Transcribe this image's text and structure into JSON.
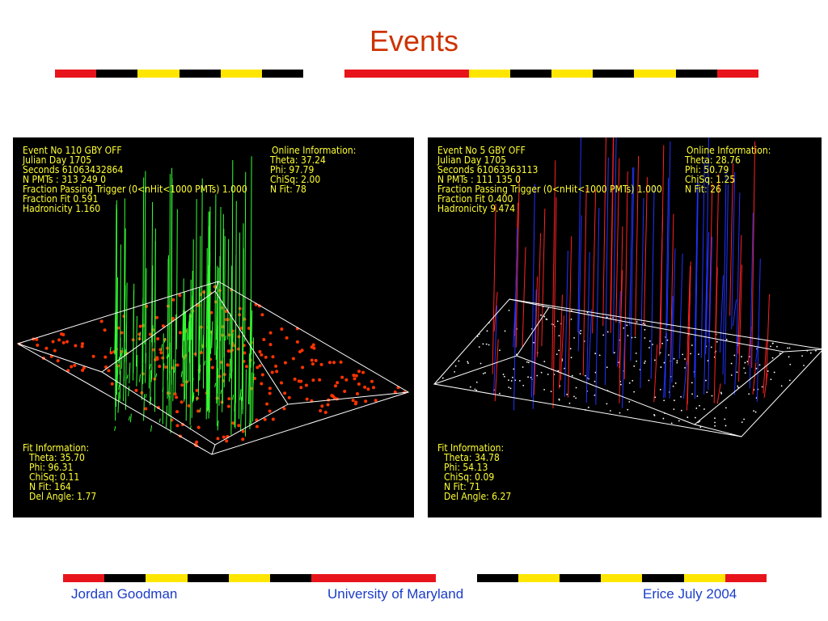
{
  "header": {
    "title": "Events"
  },
  "panels": [
    {
      "info": [
        "Event No 110 GBY OFF",
        "Julian Day 1705",
        "Seconds 61063432864",
        "N PMTs : 313 249 0",
        "Fraction Passing Trigger (0<nHit<1000 PMTs) 1.000",
        "Fraction Fit 0.591",
        "Hadronicity 1.160"
      ],
      "online": [
        "Online Information:",
        "Theta: 37.24",
        "Phi: 97.79",
        "ChiSq: 2.00",
        "N Fit: 78"
      ],
      "fit": [
        "Fit Information:",
        "Theta: 35.70",
        "Phi: 96.31",
        "ChiSq: 0.11",
        "N Fit: 164",
        "Del Angle: 1.77"
      ]
    },
    {
      "info": [
        "Event No 5 GBY OFF",
        "Julian Day 1705",
        "Seconds 61063363113",
        "N PMTs : 111 135 0",
        "Fraction Passing Trigger (0<nHit<1000 PMTs) 1.000",
        "Fraction Fit 0.400",
        "Hadronicity 9.474"
      ],
      "online": [
        "Online Information:",
        "Theta: 28.76",
        "Phi: 50.79",
        "ChiSq: 1.25",
        "N Fit: 26"
      ],
      "fit": [
        "Fit Information:",
        "Theta: 34.78",
        "Phi: 54.13",
        "ChiSq: 0.09",
        "N Fit: 71",
        "Del Angle: 6.27"
      ]
    }
  ],
  "footer": {
    "left": "Jordan Goodman",
    "center": "University of Maryland",
    "right": "Erice July 2004"
  }
}
